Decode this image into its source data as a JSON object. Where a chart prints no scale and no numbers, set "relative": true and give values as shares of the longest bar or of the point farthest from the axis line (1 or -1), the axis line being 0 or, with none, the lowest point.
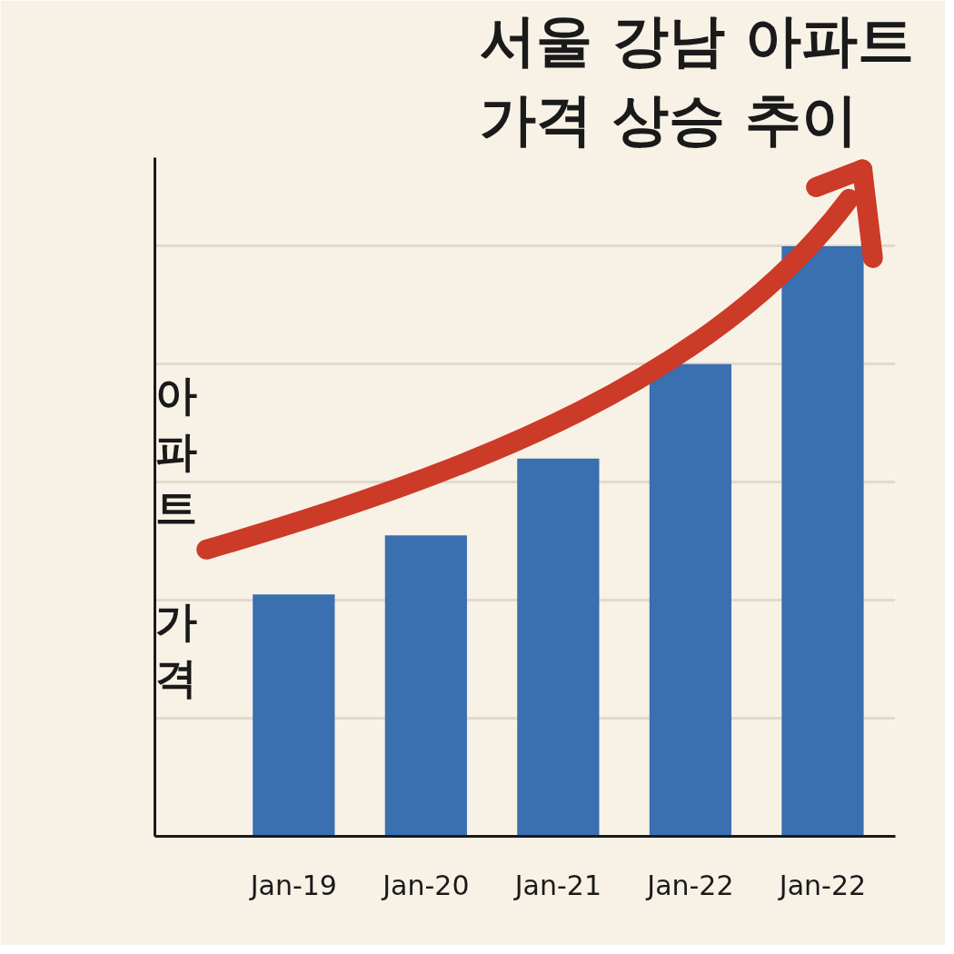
{
  "chart_data": {
    "type": "bar",
    "title": "서울 강남 아파트 가격 상승 추이",
    "ylabel": "아파트 가격",
    "categories": [
      "Jan-19",
      "Jan-20",
      "Jan-21",
      "Jan-22",
      "Jan-22"
    ],
    "values": [
      0.41,
      0.51,
      0.64,
      0.8,
      1.0
    ],
    "color": "#3a6fb0",
    "relative": true,
    "grid": "y"
  }
}
